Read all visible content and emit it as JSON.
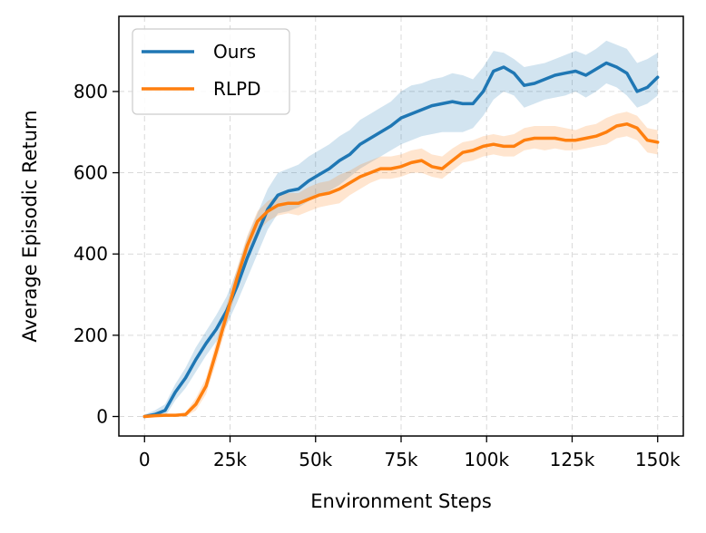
{
  "chart_data": {
    "type": "line",
    "xlabel": "Environment Steps",
    "ylabel": "Average Episodic Return",
    "xlim": [
      -7500,
      157500
    ],
    "ylim": [
      -48,
      985
    ],
    "xticks": [
      0,
      25000,
      50000,
      75000,
      100000,
      125000,
      150000
    ],
    "xtick_labels": [
      "0",
      "25k",
      "50k",
      "75k",
      "100k",
      "125k",
      "150k"
    ],
    "yticks": [
      0,
      200,
      400,
      600,
      800
    ],
    "ytick_labels": [
      "0",
      "200",
      "400",
      "600",
      "800"
    ],
    "grid": true,
    "legend_position": "top-left",
    "series": [
      {
        "name": "Ours",
        "color": "#1f77b4",
        "x": [
          0,
          3000,
          6000,
          9000,
          12000,
          15000,
          18000,
          21000,
          24000,
          27000,
          30000,
          33000,
          36000,
          39000,
          42000,
          45000,
          48000,
          51000,
          54000,
          57000,
          60000,
          63000,
          66000,
          69000,
          72000,
          75000,
          78000,
          81000,
          84000,
          87000,
          90000,
          93000,
          96000,
          99000,
          102000,
          105000,
          108000,
          111000,
          114000,
          117000,
          120000,
          123000,
          126000,
          129000,
          132000,
          135000,
          138000,
          141000,
          144000,
          147000,
          150000
        ],
        "y": [
          0,
          5,
          15,
          60,
          95,
          140,
          180,
          215,
          260,
          320,
          390,
          450,
          510,
          545,
          555,
          560,
          580,
          595,
          610,
          630,
          645,
          670,
          685,
          700,
          715,
          735,
          745,
          755,
          765,
          770,
          775,
          770,
          770,
          800,
          850,
          860,
          845,
          815,
          820,
          830,
          840,
          845,
          850,
          840,
          855,
          870,
          860,
          845,
          800,
          810,
          835
        ],
        "band_lower": [
          0,
          0,
          0,
          40,
          70,
          110,
          150,
          185,
          225,
          280,
          340,
          400,
          460,
          500,
          505,
          515,
          530,
          545,
          555,
          570,
          590,
          610,
          625,
          640,
          655,
          670,
          680,
          690,
          695,
          700,
          700,
          700,
          710,
          740,
          780,
          800,
          790,
          760,
          770,
          780,
          785,
          790,
          800,
          785,
          800,
          820,
          810,
          790,
          760,
          770,
          790
        ],
        "band_upper": [
          5,
          15,
          30,
          80,
          120,
          170,
          210,
          250,
          295,
          360,
          440,
          500,
          560,
          600,
          610,
          620,
          640,
          655,
          670,
          690,
          705,
          730,
          745,
          760,
          775,
          800,
          815,
          820,
          830,
          835,
          845,
          840,
          830,
          860,
          900,
          895,
          880,
          860,
          865,
          870,
          880,
          890,
          900,
          890,
          905,
          925,
          915,
          905,
          870,
          880,
          895
        ]
      },
      {
        "name": "RLPD",
        "color": "#ff7f0e",
        "x": [
          0,
          3000,
          6000,
          9000,
          12000,
          15000,
          18000,
          21000,
          24000,
          27000,
          30000,
          33000,
          36000,
          39000,
          42000,
          45000,
          48000,
          51000,
          54000,
          57000,
          60000,
          63000,
          66000,
          69000,
          72000,
          75000,
          78000,
          81000,
          84000,
          87000,
          90000,
          93000,
          96000,
          99000,
          102000,
          105000,
          108000,
          111000,
          114000,
          117000,
          120000,
          123000,
          126000,
          129000,
          132000,
          135000,
          138000,
          141000,
          144000,
          147000,
          150000
        ],
        "y": [
          0,
          2,
          3,
          3,
          5,
          30,
          75,
          160,
          250,
          340,
          420,
          480,
          505,
          520,
          525,
          525,
          535,
          545,
          550,
          560,
          575,
          590,
          600,
          610,
          610,
          615,
          625,
          630,
          615,
          610,
          630,
          650,
          655,
          665,
          670,
          665,
          665,
          680,
          685,
          685,
          685,
          680,
          680,
          685,
          690,
          700,
          715,
          720,
          710,
          680,
          675
        ],
        "band_lower": [
          0,
          0,
          0,
          0,
          0,
          15,
          55,
          135,
          225,
          315,
          395,
          455,
          480,
          495,
          500,
          495,
          505,
          515,
          520,
          525,
          545,
          560,
          575,
          585,
          585,
          590,
          600,
          600,
          590,
          585,
          605,
          625,
          630,
          640,
          645,
          640,
          640,
          655,
          660,
          655,
          660,
          655,
          655,
          660,
          665,
          670,
          685,
          690,
          680,
          650,
          645
        ],
        "band_upper": [
          2,
          4,
          6,
          6,
          10,
          45,
          95,
          185,
          275,
          365,
          445,
          505,
          530,
          545,
          550,
          550,
          565,
          575,
          580,
          595,
          605,
          620,
          630,
          640,
          640,
          645,
          655,
          660,
          645,
          640,
          660,
          675,
          680,
          690,
          695,
          690,
          695,
          710,
          715,
          715,
          715,
          710,
          705,
          715,
          720,
          735,
          745,
          750,
          740,
          710,
          705
        ]
      }
    ]
  }
}
